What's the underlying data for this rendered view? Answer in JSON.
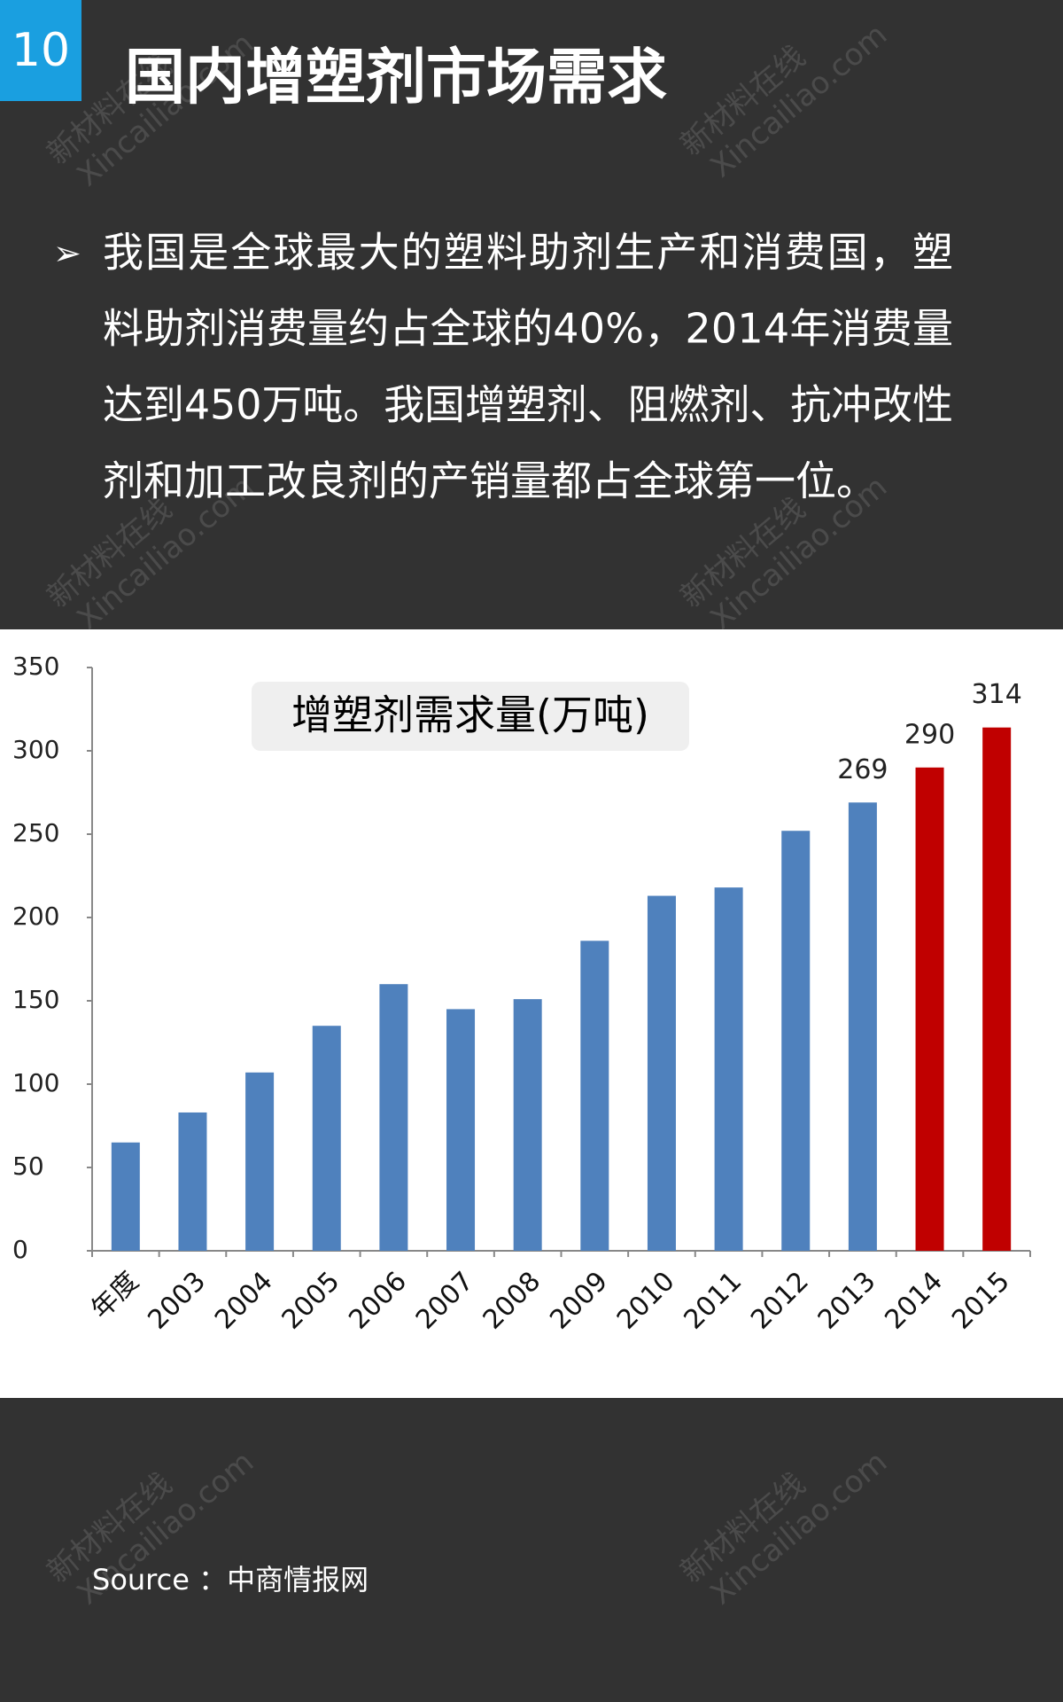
{
  "badge": "10",
  "title": "国内增塑剂市场需求",
  "bullet": {
    "marker": "➢",
    "lines": [
      "我国是全球最大的塑料助剂生产和消费国，塑",
      "料助剂消费量约占全球的40%，2014年消费量",
      "达到450万吨。我国增塑剂、阻燃剂、抗冲改性",
      "剂和加工改良剂的产销量都占全球第一位。"
    ]
  },
  "watermark": [
    "新材料在线",
    "Xincailiao.com"
  ],
  "chart_data": {
    "type": "bar",
    "title": "增塑剂需求量(万吨)",
    "categories": [
      "年度",
      "2003",
      "2004",
      "2005",
      "2006",
      "2007",
      "2008",
      "2009",
      "2010",
      "2011",
      "2012",
      "2013",
      "2014",
      "2015"
    ],
    "values": [
      65,
      83,
      107,
      135,
      160,
      145,
      151,
      186,
      213,
      218,
      252,
      269,
      290,
      314
    ],
    "value_labels": [
      null,
      null,
      null,
      null,
      null,
      null,
      null,
      null,
      null,
      null,
      null,
      "269",
      "290",
      "314"
    ],
    "colors": [
      "#4f81bd",
      "#4f81bd",
      "#4f81bd",
      "#4f81bd",
      "#4f81bd",
      "#4f81bd",
      "#4f81bd",
      "#4f81bd",
      "#4f81bd",
      "#4f81bd",
      "#4f81bd",
      "#4f81bd",
      "#c00000",
      "#c00000"
    ],
    "ylim": [
      0,
      350
    ],
    "yticks": [
      0,
      50,
      100,
      150,
      200,
      250,
      300,
      350
    ],
    "grid": false
  },
  "source": "Source ：中商情报网"
}
